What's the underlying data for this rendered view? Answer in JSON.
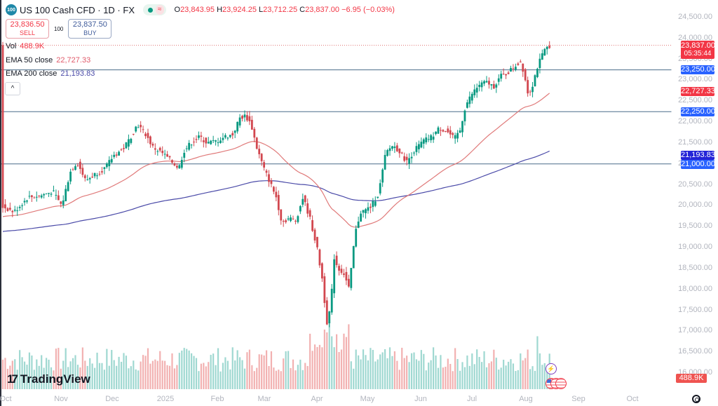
{
  "header": {
    "symbol_icon": "100",
    "title": "US 100 Cash CFD · 1D · FX",
    "market_status_icon": "green-dot-icon",
    "data_icon": "≈",
    "ohlc": {
      "o_label": "O",
      "o": "23,843.95",
      "h_label": "H",
      "h": "23,924.25",
      "l_label": "L",
      "l": "23,712.25",
      "c_label": "C",
      "c": "23,837.00",
      "change": "−6.95 (−0.03%)"
    },
    "sell": {
      "price": "23,836.50",
      "label": "SELL"
    },
    "spread": "100",
    "buy": {
      "price": "23,837.50",
      "label": "BUY"
    }
  },
  "indicators": {
    "vol": {
      "label": "Vol",
      "value": "488.9K"
    },
    "ema50": {
      "label": "EMA 50 close",
      "value": "22,727.33"
    },
    "ema200": {
      "label": "EMA 200 close",
      "value": "21,193.83"
    },
    "collapse_icon": "^"
  },
  "price_axis": {
    "ticks": [
      "24,500.00",
      "24,000.00",
      "23,500.00",
      "23,000.00",
      "22,500.00",
      "22,000.00",
      "21,500.00",
      "21,000.00",
      "20,500.00",
      "20,000.00",
      "19,500.00",
      "19,000.00",
      "18,500.00",
      "18,000.00",
      "17,500.00",
      "17,000.00",
      "16,500.00",
      "16,000.00"
    ],
    "last_price_tag": "23,837.00",
    "countdown": "05:35:44",
    "tags": {
      "line_23250": "23,250.00",
      "ema50": "22,727.33",
      "line_22250": "22,250.00",
      "ema200": "21,193.83",
      "line_21000": "21,000.00",
      "volume": "488.9K"
    }
  },
  "time_axis": {
    "labels": [
      "Oct",
      "Nov",
      "Dec",
      "2025",
      "Feb",
      "Mar",
      "Apr",
      "May",
      "Jun",
      "Jul",
      "Aug",
      "Sep",
      "Oct"
    ]
  },
  "branding": {
    "logo_mark": "17",
    "logo_text": "TradingView"
  },
  "colors": {
    "up": "#26a69a",
    "down": "#ef5350",
    "candle_up": "#089981",
    "candle_down": "#d2474f",
    "ema50": "#e07a7a",
    "ema200": "#4a4aa8",
    "hline": "#4a6b8a",
    "tag_blue": "#2962ff",
    "tag_red": "#f23645",
    "vol_up": "#9fd8d1",
    "vol_down": "#f2b1b1"
  },
  "chart_data": {
    "type": "candlestick",
    "title": "US 100 Cash CFD · 1D · FX",
    "xlabel": "",
    "ylabel": "",
    "ylim": [
      16000,
      24500
    ],
    "grid": false,
    "x": [
      "Oct 2024",
      "Nov 2024",
      "Dec 2024",
      "Jan 2025",
      "Feb 2025",
      "Mar 2025",
      "Apr 2025",
      "May 2025",
      "Jun 2025",
      "Jul 2025",
      "Aug 2025"
    ],
    "monthly_close_approx": [
      20050,
      20900,
      21350,
      21480,
      21200,
      19600,
      19350,
      21300,
      22450,
      23250,
      23837
    ],
    "key_points": [
      {
        "date": "Oct 2024",
        "price": 19900
      },
      {
        "date": "Nov 2024 mid",
        "price": 20900
      },
      {
        "date": "Dec 2024 high",
        "price": 22100
      },
      {
        "date": "Jan 2025 low",
        "price": 20750
      },
      {
        "date": "Feb 2025 high",
        "price": 22230
      },
      {
        "date": "Mar 2025 low",
        "price": 19200
      },
      {
        "date": "Apr 2025 low",
        "price": 16600
      },
      {
        "date": "Apr 2025 rebound",
        "price": 19600
      },
      {
        "date": "May 2025",
        "price": 21300
      },
      {
        "date": "Jun 2025",
        "price": 22000
      },
      {
        "date": "Jul 2025",
        "price": 23300
      },
      {
        "date": "Aug 2025 dip",
        "price": 22700
      },
      {
        "date": "Aug 2025 last",
        "price": 23837
      }
    ],
    "horizontal_lines": [
      23250,
      22250,
      21000
    ],
    "series": [
      {
        "name": "EMA 50 close",
        "last": 22727.33
      },
      {
        "name": "EMA 200 close",
        "last": 21193.83
      },
      {
        "name": "Vol",
        "last": "488.9K"
      }
    ],
    "ohlc_last": {
      "open": 23843.95,
      "high": 23924.25,
      "low": 23712.25,
      "close": 23837.0,
      "change": -6.95,
      "change_pct": -0.03
    }
  }
}
